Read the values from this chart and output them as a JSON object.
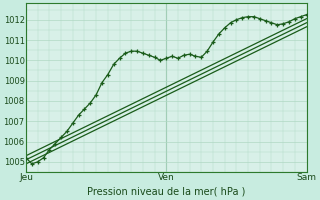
{
  "title": "",
  "xlabel": "Pression niveau de la mer( hPa )",
  "ylabel": "",
  "bg_color": "#c8ece0",
  "plot_bg_color": "#d8f0e8",
  "grid_color": "#b0d8c4",
  "line_color": "#1a5c1a",
  "spine_color": "#2d7a2d",
  "ylim": [
    1004.5,
    1012.8
  ],
  "xlim": [
    0,
    48
  ],
  "xtick_positions": [
    0,
    24,
    48
  ],
  "xtick_labels": [
    "Jeu",
    "Ven",
    "Sam"
  ],
  "ytick_positions": [
    1005,
    1006,
    1007,
    1008,
    1009,
    1010,
    1011,
    1012
  ],
  "ytick_labels": [
    "1005",
    "1006",
    "1007",
    "1008",
    "1009",
    "1010",
    "1011",
    "1012"
  ],
  "main_line_x": [
    0,
    1,
    2,
    3,
    4,
    5,
    6,
    7,
    8,
    9,
    10,
    11,
    12,
    13,
    14,
    15,
    16,
    17,
    18,
    19,
    20,
    21,
    22,
    23,
    24,
    25,
    26,
    27,
    28,
    29,
    30,
    31,
    32,
    33,
    34,
    35,
    36,
    37,
    38,
    39,
    40,
    41,
    42,
    43,
    44,
    45,
    46,
    47,
    48
  ],
  "main_line_y": [
    1005.2,
    1004.9,
    1005.0,
    1005.2,
    1005.6,
    1005.9,
    1006.2,
    1006.5,
    1006.9,
    1007.3,
    1007.6,
    1007.9,
    1008.3,
    1008.9,
    1009.3,
    1009.8,
    1010.1,
    1010.35,
    1010.45,
    1010.45,
    1010.35,
    1010.25,
    1010.15,
    1010.0,
    1010.1,
    1010.2,
    1010.1,
    1010.25,
    1010.3,
    1010.2,
    1010.15,
    1010.45,
    1010.9,
    1011.3,
    1011.6,
    1011.85,
    1012.0,
    1012.1,
    1012.15,
    1012.15,
    1012.05,
    1011.95,
    1011.85,
    1011.75,
    1011.8,
    1011.9,
    1012.05,
    1012.15,
    1012.25
  ],
  "trend_line1_x": [
    0,
    48
  ],
  "trend_line1_y": [
    1005.1,
    1011.85
  ],
  "trend_line2_x": [
    0,
    48
  ],
  "trend_line2_y": [
    1005.3,
    1012.05
  ],
  "trend_line3_x": [
    0,
    48
  ],
  "trend_line3_y": [
    1004.9,
    1011.65
  ]
}
